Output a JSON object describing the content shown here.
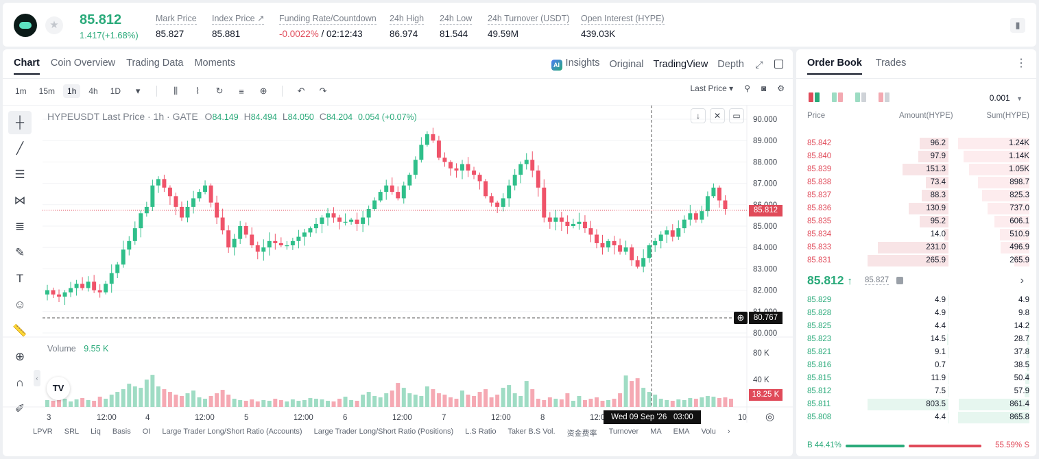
{
  "header": {
    "price": "85.812",
    "change": "1.417(+1.68%)",
    "stats": [
      {
        "label": "Mark Price",
        "value": "85.827"
      },
      {
        "label": "Index Price ↗",
        "value": "85.881"
      },
      {
        "label": "Funding Rate/Countdown",
        "value_neg": "-0.0022%",
        "value": " / 02:12:43"
      },
      {
        "label": "24h High",
        "value": "86.974"
      },
      {
        "label": "24h Low",
        "value": "81.544"
      },
      {
        "label": "24h Turnover (USDT)",
        "value": "49.59M"
      },
      {
        "label": "Open Interest (HYPE)",
        "value": "439.03K"
      }
    ]
  },
  "chart_panel": {
    "tabs": [
      "Chart",
      "Coin Overview",
      "Trading Data",
      "Moments"
    ],
    "views": {
      "insights": "Insights",
      "original": "Original",
      "tradingview": "TradingView",
      "depth": "Depth"
    },
    "timeframes": [
      "1m",
      "15m",
      "1h",
      "4h",
      "1D"
    ],
    "selected_tf": "1h",
    "price_type": "Last Price ▾",
    "legend": {
      "symbol": "HYPEUSDT Last Price · 1h · GATE",
      "o": "84.149",
      "h": "84.494",
      "l": "84.050",
      "c": "84.204",
      "chg": "0.054 (+0.07%)"
    },
    "volume_label": "Volume",
    "volume_value": "9.55 K",
    "last_price_tag": "85.812",
    "cursor_price_tag": "80.767",
    "volume_tag": "18.25 K",
    "cursor_time": "Wed 09 Sep '26   03:00",
    "bottom_indicators": [
      "LPVR",
      "SRL",
      "Liq",
      "Basis",
      "OI",
      "Large Trader Long/Short Ratio (Accounts)",
      "Large Trader Long/Short Ratio (Positions)",
      "L.S Ratio",
      "Taker B.S Vol.",
      "资金费率",
      "Turnover",
      "MA",
      "EMA",
      "Volu"
    ]
  },
  "chart_data": {
    "type": "candlestick",
    "title": "HYPEUSDT Last Price · 1h · GATE",
    "ylim": [
      80,
      90
    ],
    "y_ticks": [
      "90.000",
      "89.000",
      "88.000",
      "87.000",
      "86.000",
      "85.000",
      "84.000",
      "83.000",
      "82.000",
      "81.000",
      "80.000"
    ],
    "vol_ticks": [
      "80 K",
      "40 K"
    ],
    "x_ticks": [
      "3",
      "12:00",
      "4",
      "12:00",
      "5",
      "12:00",
      "6",
      "12:00",
      "7",
      "12:00",
      "8",
      "12:00",
      "10"
    ],
    "close_path": [
      82.0,
      81.8,
      81.7,
      81.9,
      82.1,
      82.3,
      82.1,
      82.4,
      82.0,
      81.9,
      82.3,
      82.8,
      83.2,
      83.9,
      84.3,
      84.9,
      85.6,
      85.9,
      86.9,
      87.2,
      86.8,
      86.4,
      85.9,
      85.4,
      85.9,
      86.3,
      86.6,
      86.9,
      86.1,
      85.4,
      84.8,
      84.0,
      84.4,
      85.0,
      84.6,
      84.1,
      83.8,
      84.0,
      84.3,
      84.2,
      84.1,
      84.1,
      84.3,
      84.5,
      84.7,
      84.9,
      85.1,
      85.4,
      85.6,
      85.4,
      85.2,
      85.2,
      85.3,
      85.1,
      85.4,
      85.8,
      86.2,
      86.6,
      86.9,
      86.6,
      86.3,
      86.9,
      87.4,
      88.1,
      88.8,
      89.3,
      89.0,
      88.2,
      88.0,
      87.7,
      87.6,
      87.9,
      87.6,
      87.4,
      87.1,
      86.4,
      86.1,
      85.9,
      86.3,
      86.9,
      87.4,
      87.9,
      88.1,
      87.6,
      86.8,
      85.4,
      85.2,
      85.4,
      85.2,
      85.0,
      85.1,
      85.2,
      84.9,
      84.6,
      84.2,
      84.0,
      84.3,
      84.1,
      83.8,
      84.0,
      83.4,
      83.1,
      83.5,
      84.1,
      84.3,
      84.6,
      84.8,
      84.5,
      84.9,
      85.3,
      85.6,
      85.3,
      85.7,
      86.4,
      86.8,
      86.2,
      85.8
    ],
    "volumes": [
      10,
      9,
      14,
      12,
      8,
      11,
      13,
      10,
      9,
      15,
      12,
      18,
      22,
      26,
      34,
      30,
      28,
      40,
      47,
      30,
      26,
      22,
      18,
      16,
      20,
      24,
      14,
      12,
      16,
      20,
      25,
      18,
      12,
      10,
      9,
      11,
      8,
      10,
      9,
      12,
      10,
      8,
      11,
      9,
      10,
      13,
      12,
      11,
      9,
      8,
      12,
      15,
      10,
      9,
      18,
      22,
      16,
      14,
      20,
      24,
      35,
      28,
      20,
      18,
      16,
      30,
      26,
      20,
      18,
      14,
      12,
      24,
      18,
      16,
      22,
      26,
      14,
      18,
      28,
      32,
      20,
      16,
      38,
      26,
      12,
      10,
      14,
      12,
      11,
      20,
      9,
      16,
      10,
      12,
      14,
      9,
      10,
      12,
      20,
      46,
      38,
      42,
      28,
      22,
      18,
      12,
      10,
      9,
      11,
      10,
      13,
      12,
      14,
      16,
      15,
      13,
      14,
      12
    ]
  },
  "order_book": {
    "tabs": [
      "Order Book",
      "Trades"
    ],
    "tick": "0.001",
    "headers": {
      "price": "Price",
      "amount": "Amount(HYPE)",
      "sum": "Sum(HYPE)"
    },
    "asks": [
      {
        "price": "85.842",
        "amount": "96.2",
        "sum": "1.24K",
        "depth": 1.0,
        "amt": 0.36
      },
      {
        "price": "85.840",
        "amount": "97.9",
        "sum": "1.14K",
        "depth": 0.92,
        "amt": 0.37
      },
      {
        "price": "85.839",
        "amount": "151.3",
        "sum": "1.05K",
        "depth": 0.85,
        "amt": 0.57
      },
      {
        "price": "85.838",
        "amount": "73.4",
        "sum": "898.7",
        "depth": 0.72,
        "amt": 0.28
      },
      {
        "price": "85.837",
        "amount": "88.3",
        "sum": "825.3",
        "depth": 0.66,
        "amt": 0.33
      },
      {
        "price": "85.836",
        "amount": "130.9",
        "sum": "737.0",
        "depth": 0.59,
        "amt": 0.49
      },
      {
        "price": "85.835",
        "amount": "95.2",
        "sum": "606.1",
        "depth": 0.49,
        "amt": 0.36
      },
      {
        "price": "85.834",
        "amount": "14.0",
        "sum": "510.9",
        "depth": 0.41,
        "amt": 0.05
      },
      {
        "price": "85.833",
        "amount": "231.0",
        "sum": "496.9",
        "depth": 0.4,
        "amt": 0.87
      },
      {
        "price": "85.831",
        "amount": "265.9",
        "sum": "265.9",
        "depth": 0.21,
        "amt": 1.0
      }
    ],
    "mid_price": "85.812",
    "mid_mark": "85.827",
    "bids": [
      {
        "price": "85.829",
        "amount": "4.9",
        "sum": "4.9",
        "depth": 0.01,
        "amt": 0.01
      },
      {
        "price": "85.828",
        "amount": "4.9",
        "sum": "9.8",
        "depth": 0.01,
        "amt": 0.01
      },
      {
        "price": "85.825",
        "amount": "4.4",
        "sum": "14.2",
        "depth": 0.02,
        "amt": 0.01
      },
      {
        "price": "85.823",
        "amount": "14.5",
        "sum": "28.7",
        "depth": 0.03,
        "amt": 0.02
      },
      {
        "price": "85.821",
        "amount": "9.1",
        "sum": "37.8",
        "depth": 0.04,
        "amt": 0.01
      },
      {
        "price": "85.816",
        "amount": "0.7",
        "sum": "38.5",
        "depth": 0.04,
        "amt": 0.0
      },
      {
        "price": "85.815",
        "amount": "11.9",
        "sum": "50.4",
        "depth": 0.06,
        "amt": 0.01
      },
      {
        "price": "85.812",
        "amount": "7.5",
        "sum": "57.9",
        "depth": 0.07,
        "amt": 0.01
      },
      {
        "price": "85.811",
        "amount": "803.5",
        "sum": "861.4",
        "depth": 0.99,
        "amt": 1.0
      },
      {
        "price": "85.808",
        "amount": "4.4",
        "sum": "865.8",
        "depth": 1.0,
        "amt": 0.01
      }
    ],
    "buy_ratio": "B 44.41%",
    "sell_ratio": "55.59% S"
  },
  "colors": {
    "up": "#2aaa7a",
    "down": "#e04a59",
    "up_candle": "#2fbf8a",
    "down_candle": "#ef5369"
  }
}
